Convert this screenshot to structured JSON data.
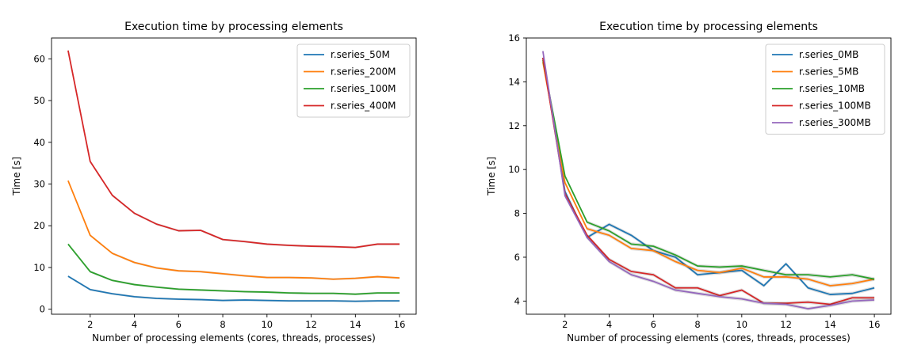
{
  "chart_data": [
    {
      "type": "line",
      "title": "Execution time by processing elements",
      "xlabel": "Number of processing elements (cores, threads, processes)",
      "ylabel": "Time [s]",
      "xlim": [
        0.25,
        16.75
      ],
      "ylim": [
        -1.2,
        65.0
      ],
      "xticks": [
        2,
        4,
        6,
        8,
        10,
        12,
        14,
        16
      ],
      "yticks": [
        0,
        10,
        20,
        30,
        40,
        50,
        60
      ],
      "grid": false,
      "legend_position": "top-right",
      "x": [
        1,
        2,
        3,
        4,
        5,
        6,
        7,
        8,
        9,
        10,
        11,
        12,
        13,
        14,
        15,
        16
      ],
      "series": [
        {
          "name": "r.series_50M",
          "color": "#1f77b4",
          "values": [
            7.9,
            4.7,
            3.7,
            3.0,
            2.6,
            2.4,
            2.3,
            2.1,
            2.2,
            2.1,
            2.0,
            2.0,
            2.0,
            1.9,
            2.0,
            2.0
          ]
        },
        {
          "name": "r.series_200M",
          "color": "#ff7f0e",
          "values": [
            30.8,
            17.7,
            13.4,
            11.2,
            9.9,
            9.2,
            9.0,
            8.5,
            8.0,
            7.6,
            7.6,
            7.5,
            7.2,
            7.4,
            7.8,
            7.5
          ]
        },
        {
          "name": "r.series_100M",
          "color": "#2ca02c",
          "values": [
            15.6,
            9.0,
            6.9,
            5.9,
            5.3,
            4.8,
            4.6,
            4.4,
            4.2,
            4.1,
            3.9,
            3.8,
            3.8,
            3.6,
            3.9,
            3.9
          ]
        },
        {
          "name": "r.series_400M",
          "color": "#d62728",
          "values": [
            62.0,
            35.4,
            27.3,
            23.0,
            20.4,
            18.8,
            18.9,
            16.7,
            16.2,
            15.6,
            15.3,
            15.1,
            15.0,
            14.8,
            15.6,
            15.6
          ]
        }
      ]
    },
    {
      "type": "line",
      "title": "Execution time by processing elements",
      "xlabel": "Number of processing elements (cores, threads, processes)",
      "ylabel": "Time [s]",
      "xlim": [
        0.25,
        16.75
      ],
      "ylim": [
        3.4,
        16.0
      ],
      "xticks": [
        2,
        4,
        6,
        8,
        10,
        12,
        14,
        16
      ],
      "yticks": [
        4,
        6,
        8,
        10,
        12,
        14,
        16
      ],
      "grid": false,
      "legend_position": "top-right",
      "x": [
        1,
        2,
        3,
        4,
        5,
        6,
        7,
        8,
        9,
        10,
        11,
        12,
        13,
        14,
        15,
        16
      ],
      "series": [
        {
          "name": "r.series_0MB",
          "color": "#1f77b4",
          "values": [
            15.1,
            9.0,
            6.9,
            7.5,
            7.0,
            6.3,
            6.0,
            5.2,
            5.3,
            5.4,
            4.7,
            5.7,
            4.6,
            4.3,
            4.35,
            4.6
          ]
        },
        {
          "name": "r.series_5MB",
          "color": "#ff7f0e",
          "values": [
            14.9,
            9.4,
            7.3,
            7.0,
            6.4,
            6.3,
            5.8,
            5.4,
            5.3,
            5.5,
            5.1,
            5.1,
            5.0,
            4.7,
            4.8,
            5.0
          ]
        },
        {
          "name": "r.series_10MB",
          "color": "#2ca02c",
          "values": [
            15.0,
            9.7,
            7.6,
            7.2,
            6.6,
            6.5,
            6.1,
            5.6,
            5.55,
            5.6,
            5.4,
            5.2,
            5.2,
            5.1,
            5.2,
            5.0
          ]
        },
        {
          "name": "r.series_100MB",
          "color": "#d62728",
          "values": [
            15.1,
            8.9,
            7.0,
            5.9,
            5.35,
            5.2,
            4.6,
            4.6,
            4.25,
            4.5,
            3.9,
            3.9,
            3.95,
            3.85,
            4.15,
            4.15
          ]
        },
        {
          "name": "r.series_300MB",
          "color": "#9467bd",
          "values": [
            15.4,
            8.8,
            6.9,
            5.8,
            5.2,
            4.9,
            4.5,
            4.35,
            4.2,
            4.1,
            3.9,
            3.85,
            3.65,
            3.8,
            4.0,
            4.05
          ]
        }
      ]
    }
  ]
}
